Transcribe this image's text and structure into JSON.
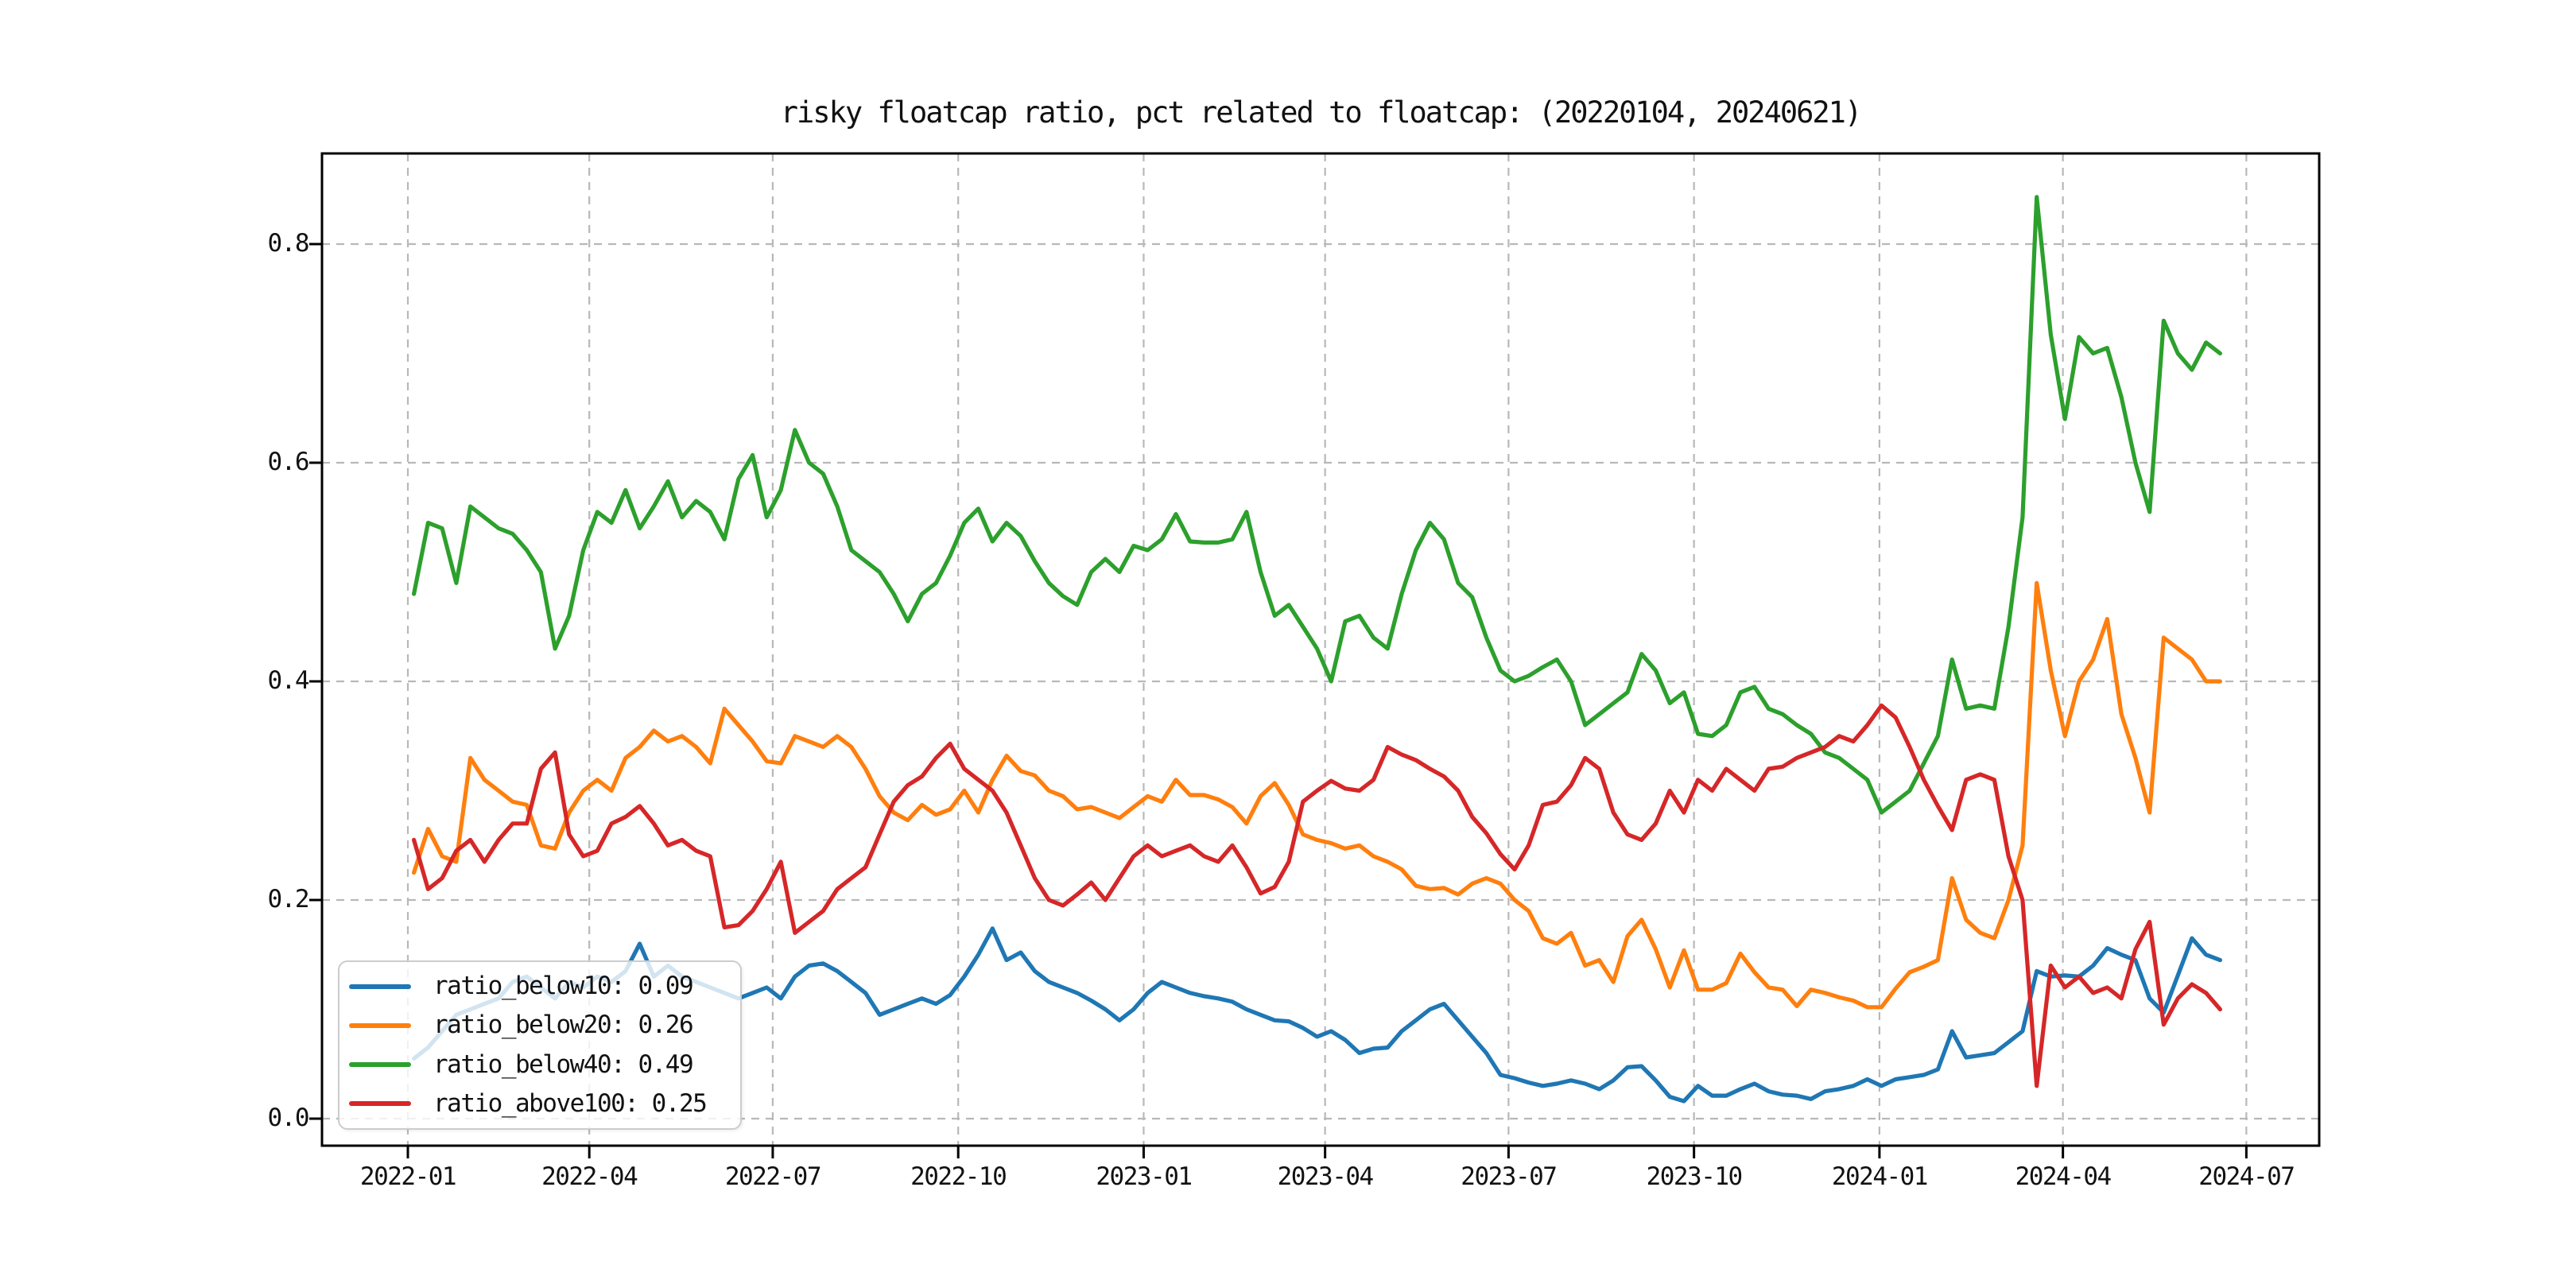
{
  "figure": {
    "background": "#ffffff",
    "grid_color": "#b8b8b8",
    "spine_color": "#000000",
    "text_color": "#111111"
  },
  "chart_data": {
    "type": "line",
    "title": "risky floatcap ratio, pct related to floatcap: (20220104, 20240621)",
    "xlabel": "",
    "ylabel": "",
    "grid": true,
    "legend_position": "lower left",
    "x_ticks": [
      "2022-01",
      "2022-04",
      "2022-07",
      "2022-10",
      "2023-01",
      "2023-04",
      "2023-07",
      "2023-10",
      "2024-01",
      "2024-04",
      "2024-07"
    ],
    "y_ticks": [
      0.0,
      0.2,
      0.4,
      0.6,
      0.8
    ],
    "y_tick_labels": [
      "0.0",
      "0.2",
      "0.4",
      "0.6",
      "0.8"
    ],
    "ylim": [
      -0.025,
      0.885
    ],
    "x_start": "2022-01-04",
    "x_end": "2024-06-21",
    "step_days": 7,
    "series": [
      {
        "name": "ratio_below10",
        "legend_label": "ratio_below10: 0.09",
        "mean_value": 0.09,
        "color": "#1f77b4",
        "values": [
          0.055,
          0.065,
          0.08,
          0.095,
          0.1,
          0.105,
          0.11,
          0.125,
          0.13,
          0.12,
          0.11,
          0.125,
          0.12,
          0.13,
          0.125,
          0.135,
          0.16,
          0.13,
          0.14,
          0.13,
          0.125,
          0.12,
          0.115,
          0.11,
          0.115,
          0.12,
          0.11,
          0.13,
          0.14,
          0.142,
          0.135,
          0.125,
          0.115,
          0.095,
          0.1,
          0.105,
          0.11,
          0.105,
          0.113,
          0.13,
          0.15,
          0.174,
          0.145,
          0.152,
          0.135,
          0.125,
          0.12,
          0.115,
          0.108,
          0.1,
          0.09,
          0.1,
          0.115,
          0.125,
          0.12,
          0.115,
          0.112,
          0.11,
          0.107,
          0.1,
          0.095,
          0.09,
          0.089,
          0.083,
          0.075,
          0.08,
          0.072,
          0.06,
          0.064,
          0.065,
          0.08,
          0.09,
          0.1,
          0.105,
          0.09,
          0.075,
          0.06,
          0.04,
          0.037,
          0.033,
          0.03,
          0.032,
          0.035,
          0.032,
          0.027,
          0.035,
          0.047,
          0.048,
          0.035,
          0.02,
          0.016,
          0.03,
          0.021,
          0.021,
          0.027,
          0.032,
          0.025,
          0.022,
          0.021,
          0.018,
          0.025,
          0.027,
          0.03,
          0.036,
          0.03,
          0.036,
          0.038,
          0.04,
          0.045,
          0.08,
          0.056,
          0.058,
          0.06,
          0.07,
          0.08,
          0.135,
          0.13,
          0.131,
          0.13,
          0.14,
          0.156,
          0.15,
          0.145,
          0.11,
          0.097,
          0.131,
          0.165,
          0.15,
          0.145
        ]
      },
      {
        "name": "ratio_below20",
        "legend_label": "ratio_below20: 0.26",
        "mean_value": 0.26,
        "color": "#ff7f0e",
        "values": [
          0.225,
          0.265,
          0.24,
          0.235,
          0.33,
          0.31,
          0.3,
          0.29,
          0.287,
          0.25,
          0.247,
          0.28,
          0.3,
          0.31,
          0.3,
          0.33,
          0.34,
          0.355,
          0.345,
          0.35,
          0.34,
          0.325,
          0.375,
          0.36,
          0.345,
          0.327,
          0.325,
          0.35,
          0.345,
          0.34,
          0.35,
          0.34,
          0.32,
          0.295,
          0.28,
          0.273,
          0.287,
          0.278,
          0.283,
          0.3,
          0.28,
          0.31,
          0.332,
          0.318,
          0.314,
          0.3,
          0.295,
          0.283,
          0.285,
          0.28,
          0.275,
          0.285,
          0.295,
          0.29,
          0.31,
          0.296,
          0.296,
          0.292,
          0.285,
          0.27,
          0.295,
          0.307,
          0.287,
          0.26,
          0.255,
          0.252,
          0.247,
          0.25,
          0.24,
          0.235,
          0.228,
          0.213,
          0.21,
          0.211,
          0.205,
          0.215,
          0.22,
          0.215,
          0.2,
          0.19,
          0.165,
          0.16,
          0.17,
          0.14,
          0.145,
          0.125,
          0.167,
          0.182,
          0.155,
          0.12,
          0.154,
          0.118,
          0.118,
          0.124,
          0.151,
          0.134,
          0.12,
          0.118,
          0.103,
          0.118,
          0.115,
          0.111,
          0.108,
          0.102,
          0.102,
          0.119,
          0.134,
          0.139,
          0.145,
          0.22,
          0.182,
          0.17,
          0.165,
          0.2,
          0.25,
          0.49,
          0.41,
          0.35,
          0.4,
          0.42,
          0.457,
          0.37,
          0.33,
          0.28,
          0.44,
          0.43,
          0.42,
          0.4,
          0.4
        ]
      },
      {
        "name": "ratio_below40",
        "legend_label": "ratio_below40: 0.49",
        "mean_value": 0.49,
        "color": "#2ca02c",
        "values": [
          0.48,
          0.545,
          0.54,
          0.49,
          0.56,
          0.55,
          0.54,
          0.535,
          0.52,
          0.5,
          0.43,
          0.46,
          0.52,
          0.555,
          0.545,
          0.575,
          0.54,
          0.56,
          0.583,
          0.55,
          0.565,
          0.555,
          0.53,
          0.585,
          0.607,
          0.55,
          0.575,
          0.63,
          0.6,
          0.59,
          0.56,
          0.52,
          0.51,
          0.5,
          0.48,
          0.455,
          0.48,
          0.49,
          0.515,
          0.545,
          0.558,
          0.528,
          0.545,
          0.533,
          0.51,
          0.49,
          0.478,
          0.47,
          0.5,
          0.512,
          0.5,
          0.524,
          0.52,
          0.53,
          0.553,
          0.528,
          0.527,
          0.527,
          0.53,
          0.555,
          0.5,
          0.46,
          0.47,
          0.45,
          0.43,
          0.4,
          0.455,
          0.46,
          0.44,
          0.43,
          0.48,
          0.52,
          0.545,
          0.53,
          0.49,
          0.477,
          0.44,
          0.41,
          0.4,
          0.405,
          0.413,
          0.42,
          0.4,
          0.36,
          0.37,
          0.38,
          0.39,
          0.425,
          0.41,
          0.38,
          0.39,
          0.352,
          0.35,
          0.36,
          0.39,
          0.395,
          0.375,
          0.37,
          0.36,
          0.352,
          0.335,
          0.33,
          0.32,
          0.31,
          0.28,
          0.29,
          0.3,
          0.325,
          0.35,
          0.42,
          0.375,
          0.378,
          0.375,
          0.45,
          0.55,
          0.843,
          0.717,
          0.64,
          0.715,
          0.7,
          0.705,
          0.66,
          0.6,
          0.555,
          0.73,
          0.7,
          0.685,
          0.71,
          0.7
        ]
      },
      {
        "name": "ratio_above100",
        "legend_label": "ratio_above100: 0.25",
        "mean_value": 0.25,
        "color": "#d62728",
        "values": [
          0.255,
          0.21,
          0.22,
          0.245,
          0.255,
          0.235,
          0.255,
          0.27,
          0.27,
          0.32,
          0.335,
          0.26,
          0.24,
          0.245,
          0.27,
          0.276,
          0.286,
          0.27,
          0.25,
          0.255,
          0.245,
          0.24,
          0.175,
          0.177,
          0.19,
          0.21,
          0.235,
          0.17,
          0.18,
          0.19,
          0.21,
          0.22,
          0.23,
          0.26,
          0.29,
          0.305,
          0.313,
          0.33,
          0.343,
          0.32,
          0.31,
          0.3,
          0.28,
          0.25,
          0.22,
          0.2,
          0.195,
          0.205,
          0.216,
          0.2,
          0.22,
          0.24,
          0.25,
          0.24,
          0.245,
          0.25,
          0.24,
          0.235,
          0.25,
          0.23,
          0.206,
          0.212,
          0.235,
          0.29,
          0.3,
          0.309,
          0.302,
          0.3,
          0.31,
          0.34,
          0.333,
          0.328,
          0.32,
          0.313,
          0.3,
          0.276,
          0.261,
          0.242,
          0.228,
          0.25,
          0.287,
          0.29,
          0.305,
          0.33,
          0.32,
          0.28,
          0.26,
          0.255,
          0.27,
          0.3,
          0.28,
          0.31,
          0.3,
          0.32,
          0.31,
          0.3,
          0.32,
          0.322,
          0.33,
          0.335,
          0.34,
          0.35,
          0.345,
          0.36,
          0.378,
          0.367,
          0.34,
          0.31,
          0.286,
          0.264,
          0.31,
          0.315,
          0.31,
          0.24,
          0.2,
          0.03,
          0.14,
          0.12,
          0.13,
          0.115,
          0.12,
          0.11,
          0.155,
          0.18,
          0.086,
          0.11,
          0.123,
          0.115,
          0.1
        ]
      }
    ]
  }
}
